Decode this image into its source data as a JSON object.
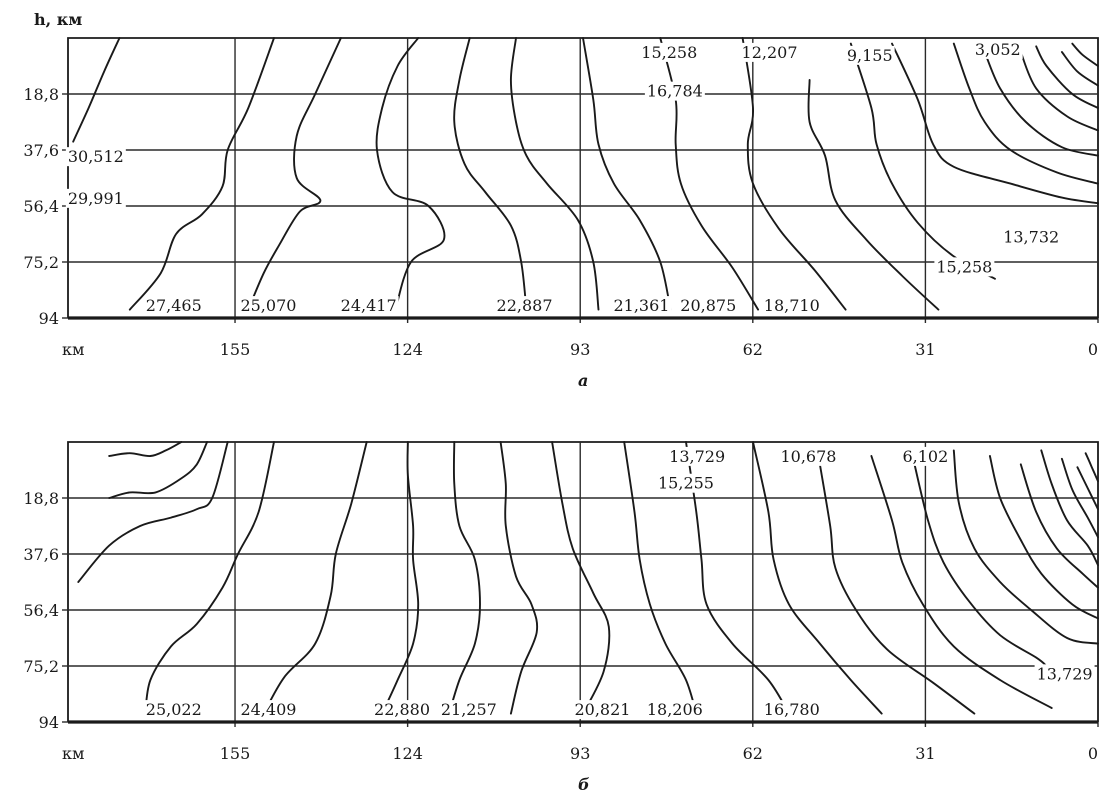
{
  "chart_data": [
    {
      "type": "contour",
      "panel_label": "а",
      "ylabel": "h, км",
      "xlabel": "км",
      "x_ticks": [
        "155",
        "124",
        "93",
        "62",
        "31",
        "0"
      ],
      "x_tick_values": [
        155,
        124,
        93,
        62,
        31,
        0
      ],
      "y_ticks": [
        "18,8",
        "37,6",
        "56,4",
        "75,2",
        "94"
      ],
      "y_tick_values": [
        18.8,
        37.6,
        56.4,
        75.2,
        94
      ],
      "xlim": [
        185,
        0
      ],
      "ylim": [
        0,
        94
      ],
      "y_inverted": true,
      "grid": true,
      "contour_labels": [
        {
          "text": "3,052",
          "x": 18,
          "y": 4
        },
        {
          "text": "9,155",
          "x": 41,
          "y": 6
        },
        {
          "text": "12,207",
          "x": 59,
          "y": 5
        },
        {
          "text": "15,258",
          "x": 77,
          "y": 5
        },
        {
          "text": "16,784",
          "x": 76,
          "y": 18
        },
        {
          "text": "30,512",
          "x": 180,
          "y": 40
        },
        {
          "text": "29,991",
          "x": 180,
          "y": 54
        },
        {
          "text": "13,732",
          "x": 12,
          "y": 67
        },
        {
          "text": "15,258",
          "x": 24,
          "y": 77
        },
        {
          "text": "27,465",
          "x": 166,
          "y": 90
        },
        {
          "text": "25,070",
          "x": 149,
          "y": 90
        },
        {
          "text": "24,417",
          "x": 131,
          "y": 90
        },
        {
          "text": "22,887",
          "x": 103,
          "y": 90
        },
        {
          "text": "21,361",
          "x": 82,
          "y": 90
        },
        {
          "text": "20,875",
          "x": 70,
          "y": 90
        },
        {
          "text": "18,710",
          "x": 55,
          "y": 90
        }
      ]
    },
    {
      "type": "contour",
      "panel_label": "б",
      "xlabel": "км",
      "x_ticks": [
        "155",
        "124",
        "93",
        "62",
        "31",
        "0"
      ],
      "x_tick_values": [
        155,
        124,
        93,
        62,
        31,
        0
      ],
      "y_ticks": [
        "18,8",
        "37,6",
        "56,4",
        "75,2",
        "94"
      ],
      "y_tick_values": [
        18.8,
        37.6,
        56.4,
        75.2,
        94
      ],
      "xlim": [
        185,
        0
      ],
      "ylim": [
        0,
        94
      ],
      "y_inverted": true,
      "grid": true,
      "contour_labels": [
        {
          "text": "6,102",
          "x": 31,
          "y": 5
        },
        {
          "text": "10,678",
          "x": 52,
          "y": 5
        },
        {
          "text": "13,729",
          "x": 72,
          "y": 5
        },
        {
          "text": "15,255",
          "x": 74,
          "y": 14
        },
        {
          "text": "13,729",
          "x": 6,
          "y": 78
        },
        {
          "text": "25,022",
          "x": 166,
          "y": 90
        },
        {
          "text": "24,409",
          "x": 149,
          "y": 90
        },
        {
          "text": "22,880",
          "x": 125,
          "y": 90
        },
        {
          "text": "21,257",
          "x": 113,
          "y": 90
        },
        {
          "text": "20,821",
          "x": 89,
          "y": 90
        },
        {
          "text": "18,206",
          "x": 76,
          "y": 90
        },
        {
          "text": "16,780",
          "x": 55,
          "y": 90
        }
      ]
    }
  ]
}
